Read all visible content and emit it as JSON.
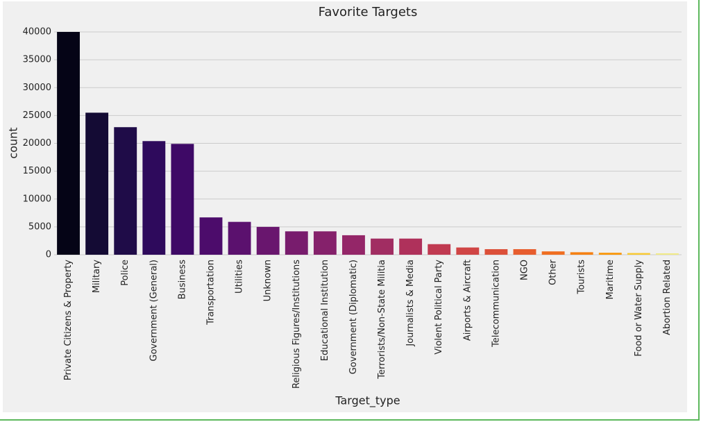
{
  "chart_data": {
    "type": "bar",
    "title": "Favorite Targets",
    "x_label": "Target_type",
    "y_label": "count",
    "categories": [
      "Private Citizens & Property",
      "Military",
      "Police",
      "Government (General)",
      "Business",
      "Transportation",
      "Utilities",
      "Unknown",
      "Religious Figures/Institutions",
      "Educational Institution",
      "Government (Diplomatic)",
      "Terrorists/Non-State Militia",
      "Journalists & Media",
      "Violent Political Party",
      "Airports & Aircraft",
      "Telecommunication",
      "NGO",
      "Other",
      "Tourists",
      "Maritime",
      "Food or Water Supply",
      "Abortion Related"
    ],
    "values": [
      40000,
      25500,
      22900,
      20400,
      19900,
      6700,
      5900,
      5000,
      4200,
      4200,
      3500,
      2900,
      2900,
      1900,
      1300,
      1000,
      1000,
      600,
      450,
      350,
      300,
      250
    ],
    "colors": [
      "#050416",
      "#140b34",
      "#1f0c48",
      "#2e0a5c",
      "#3e0966",
      "#4c0c6b",
      "#5b116e",
      "#69166e",
      "#781c6d",
      "#85216b",
      "#942668",
      "#a12d62",
      "#af315b",
      "#c03a51",
      "#d04545",
      "#dc5039",
      "#e75d2e",
      "#ef6e21",
      "#f58114",
      "#f9970a",
      "#f8c933",
      "#f1ea86"
    ],
    "ylim": [
      0,
      40000
    ],
    "yticks": [
      0,
      5000,
      10000,
      15000,
      20000,
      25000,
      30000,
      35000,
      40000
    ],
    "grid": true
  }
}
